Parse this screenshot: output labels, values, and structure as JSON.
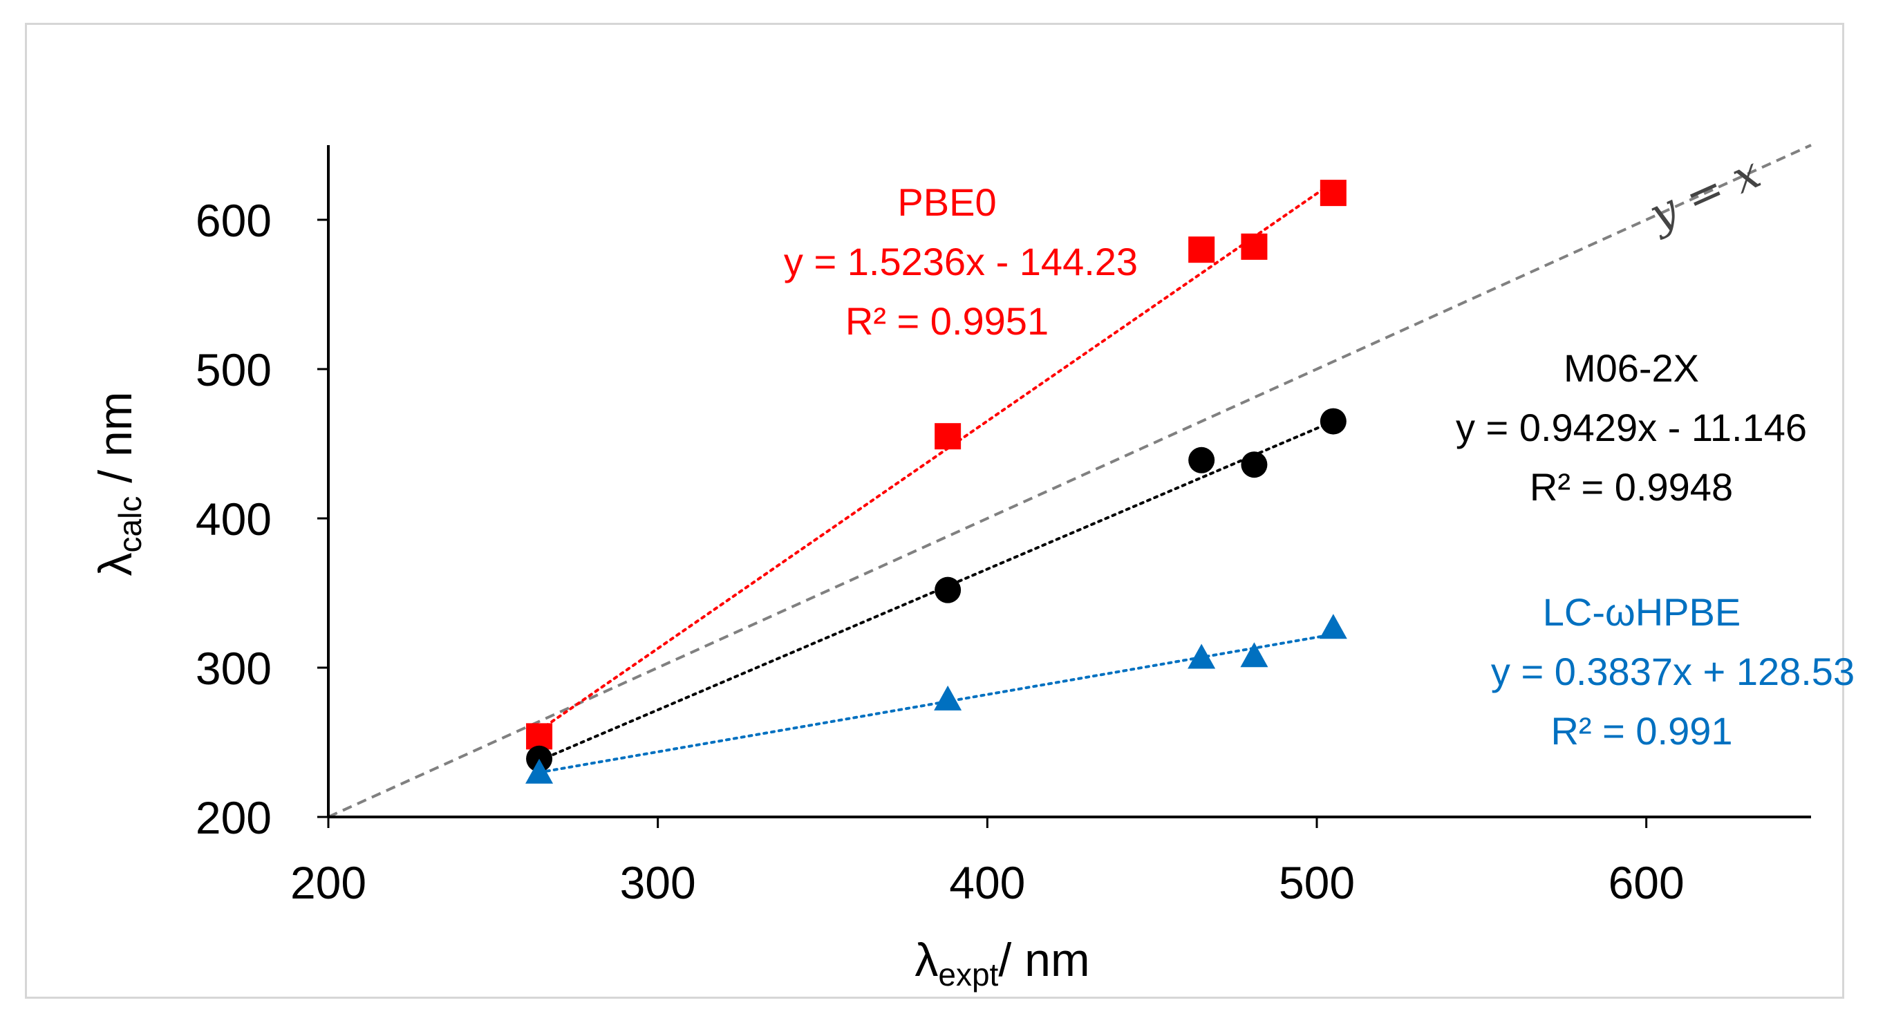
{
  "chart_data": {
    "type": "scatter",
    "title": "",
    "xlabel": {
      "main": "λ",
      "sub": "expt",
      "rest": "/ nm"
    },
    "ylabel": {
      "main": "λ",
      "sub": "calc",
      "rest": " / nm"
    },
    "xlim": [
      200,
      650
    ],
    "ylim": [
      200,
      650
    ],
    "xticks": [
      200,
      300,
      400,
      500,
      600
    ],
    "yticks": [
      200,
      300,
      400,
      500,
      600
    ],
    "x": [
      264,
      388,
      465,
      481,
      505
    ],
    "series": [
      {
        "name": "PBE0",
        "color": "#ff0000",
        "marker": "square",
        "values": [
          254,
          455,
          580,
          582,
          618
        ],
        "fit": {
          "slope": 1.5236,
          "intercept": -144.23
        },
        "equation": "y = 1.5236x - 144.23",
        "r2": "R² = 0.9951"
      },
      {
        "name": "M06-2X",
        "color": "#000000",
        "marker": "circle",
        "values": [
          239,
          352,
          439,
          436,
          465
        ],
        "fit": {
          "slope": 0.9429,
          "intercept": -11.146
        },
        "equation": "y = 0.9429x - 11.146",
        "r2": "R² = 0.9948"
      },
      {
        "name": "LC-ωHPBE",
        "color": "#0070c0",
        "marker": "triangle",
        "values": [
          229,
          278,
          306,
          307,
          326
        ],
        "fit": {
          "slope": 0.3837,
          "intercept": 128.53
        },
        "equation": "y = 0.3837x + 128.53",
        "r2": "R² = 0.991"
      }
    ],
    "reference_line": {
      "label": "y = x",
      "color": "#808080",
      "style": "dashed"
    }
  }
}
